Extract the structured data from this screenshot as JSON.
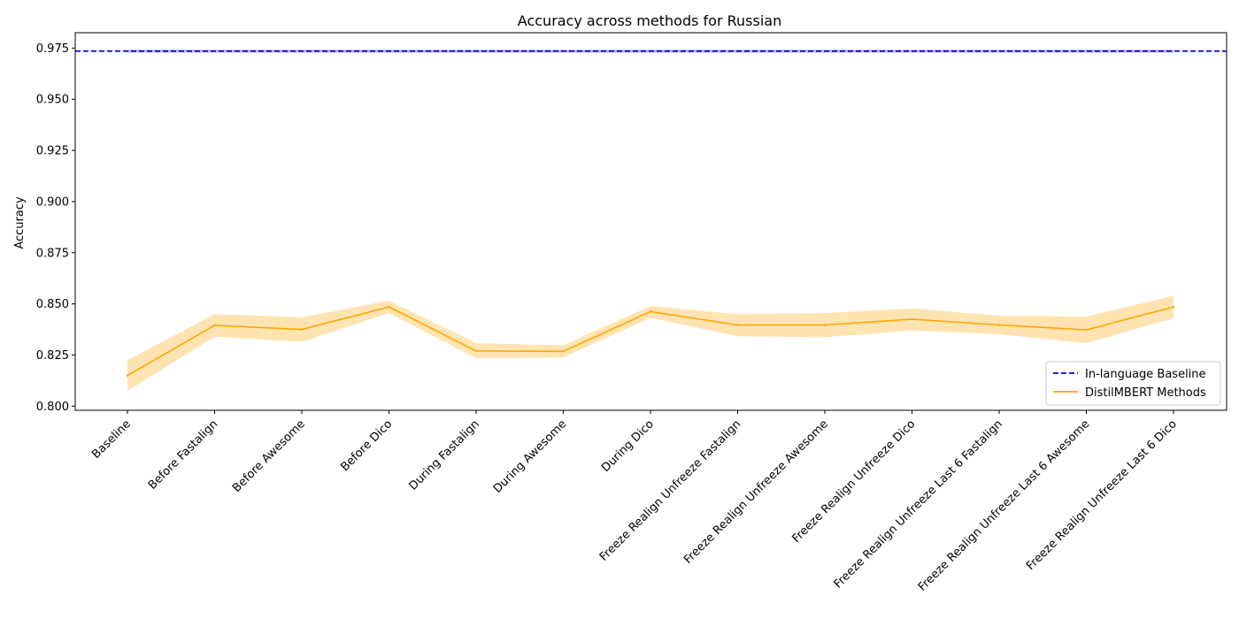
{
  "chart_data": {
    "type": "line",
    "title": "Accuracy across methods for Russian",
    "xlabel": "",
    "ylabel": "Accuracy",
    "ylim": [
      0.798,
      0.9825
    ],
    "yticks": [
      0.8,
      0.825,
      0.85,
      0.875,
      0.9,
      0.925,
      0.95,
      0.975
    ],
    "ytick_labels": [
      "0.800",
      "0.825",
      "0.850",
      "0.875",
      "0.900",
      "0.925",
      "0.950",
      "0.975"
    ],
    "grid": false,
    "legend_position": "lower right",
    "categories": [
      "Baseline",
      "Before Fastalign",
      "Before Awesome",
      "Before Dico",
      "During Fastalign",
      "During Awesome",
      "During Dico",
      "Freeze Realign Unfreeze Fastalign",
      "Freeze Realign Unfreeze Awesome",
      "Freeze Realign Unfreeze Dico",
      "Freeze Realign Unfreeze Last 6 Fastalign",
      "Freeze Realign Unfreeze Last 6 Awesome",
      "Freeze Realign Unfreeze Last 6 Dico"
    ],
    "series": [
      {
        "name": "DistilMBERT Methods",
        "color": "#ffa500",
        "band_color": "#ffa500",
        "values": [
          0.815,
          0.8395,
          0.8375,
          0.8485,
          0.827,
          0.8268,
          0.8462,
          0.8397,
          0.8397,
          0.8425,
          0.8397,
          0.8373,
          0.8485
        ],
        "lower": [
          0.8075,
          0.834,
          0.8315,
          0.8455,
          0.8235,
          0.8238,
          0.8432,
          0.8342,
          0.8337,
          0.837,
          0.8352,
          0.8308,
          0.843
        ],
        "upper": [
          0.8225,
          0.845,
          0.8435,
          0.8515,
          0.8308,
          0.8298,
          0.849,
          0.845,
          0.8455,
          0.8478,
          0.8442,
          0.8438,
          0.854
        ]
      }
    ],
    "baseline": {
      "name": "In-language Baseline",
      "color": "#0000cd",
      "value": 0.9735,
      "band": [
        0.9728,
        0.9742
      ]
    }
  }
}
